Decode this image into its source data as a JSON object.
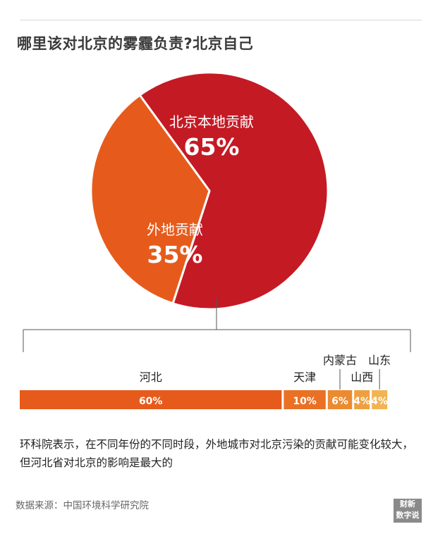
{
  "title": "哪里该对北京的雾霾负责?北京自己",
  "chart_data": [
    {
      "type": "pie",
      "slices": [
        {
          "label": "北京本地贡献",
          "value_label": "65%",
          "value": 65,
          "color": "#c41a24"
        },
        {
          "label": "外地贡献",
          "value_label": "35%",
          "value": 35,
          "color": "#e65b1b"
        }
      ]
    },
    {
      "type": "bar",
      "orientation": "horizontal-stacked",
      "categories": [
        "河北",
        "天津",
        "内蒙古",
        "山西",
        "山东"
      ],
      "value_labels": [
        "60%",
        "10%",
        "6%",
        "4%",
        "4%"
      ],
      "values": [
        60,
        10,
        6,
        4,
        4
      ],
      "colors": [
        "#e65b1b",
        "#ea7124",
        "#ec8a30",
        "#eea03f",
        "#f1b452"
      ]
    }
  ],
  "description": "环科院表示，在不同年份的不同时段，外地城市对北京污染的贡献可能变化较大，但河北省对北京的影响是最大的",
  "source": "数据来源：中国环境科学研究院",
  "logo": {
    "line1": "财新",
    "line2": "数字说"
  }
}
